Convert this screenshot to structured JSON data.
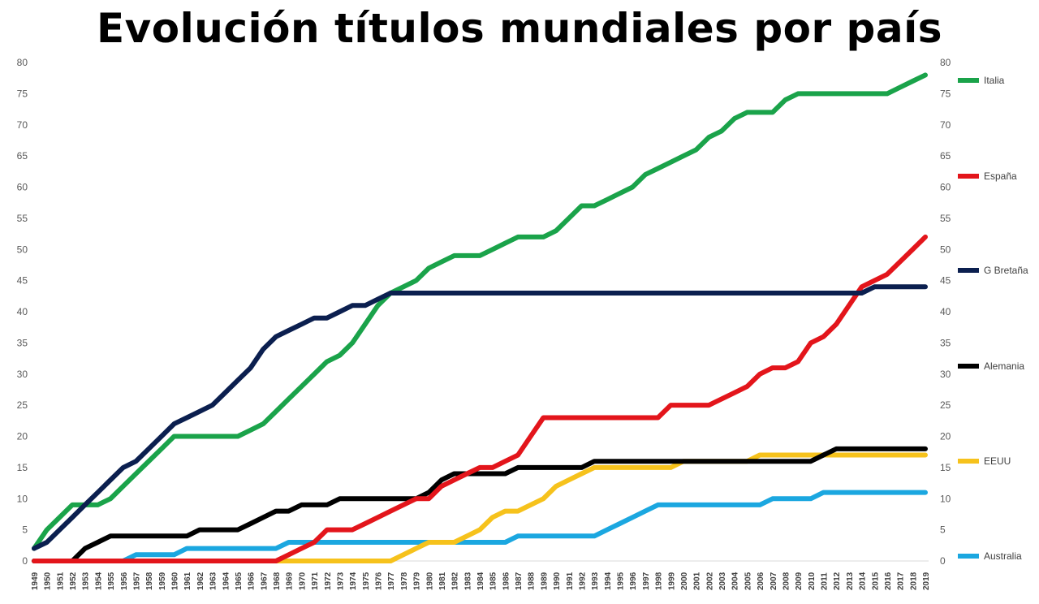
{
  "chart_data": {
    "type": "line",
    "title": "Evolución títulos mundiales por país",
    "xlabel": "",
    "ylabel": "",
    "ylim": [
      0,
      80
    ],
    "yticks": [
      0,
      5,
      10,
      15,
      20,
      25,
      30,
      35,
      40,
      45,
      50,
      55,
      60,
      65,
      70,
      75,
      80
    ],
    "x": [
      1949,
      1950,
      1951,
      1952,
      1953,
      1954,
      1955,
      1956,
      1957,
      1958,
      1959,
      1960,
      1961,
      1962,
      1963,
      1964,
      1965,
      1966,
      1967,
      1968,
      1969,
      1970,
      1971,
      1972,
      1973,
      1974,
      1975,
      1976,
      1977,
      1978,
      1979,
      1980,
      1981,
      1982,
      1983,
      1984,
      1985,
      1986,
      1987,
      1988,
      1989,
      1990,
      1991,
      1992,
      1993,
      1994,
      1995,
      1996,
      1997,
      1998,
      1999,
      2000,
      2001,
      2002,
      2003,
      2004,
      2005,
      2006,
      2007,
      2008,
      2009,
      2010,
      2011,
      2012,
      2013,
      2014,
      2015,
      2016,
      2017,
      2018,
      2019
    ],
    "series": [
      {
        "name": "Italia",
        "color": "#1aa34a",
        "values": [
          2,
          5,
          7,
          9,
          9,
          9,
          10,
          12,
          14,
          16,
          18,
          20,
          20,
          20,
          20,
          20,
          20,
          21,
          22,
          24,
          26,
          28,
          30,
          32,
          33,
          35,
          38,
          41,
          43,
          44,
          45,
          47,
          48,
          49,
          49,
          49,
          50,
          51,
          52,
          52,
          52,
          53,
          55,
          57,
          57,
          58,
          59,
          60,
          62,
          63,
          64,
          65,
          66,
          68,
          69,
          71,
          72,
          72,
          72,
          74,
          75,
          75,
          75,
          75,
          75,
          75,
          75,
          75,
          76,
          77,
          78
        ]
      },
      {
        "name": "España",
        "color": "#e3151b",
        "values": [
          0,
          0,
          0,
          0,
          0,
          0,
          0,
          0,
          0,
          0,
          0,
          0,
          0,
          0,
          0,
          0,
          0,
          0,
          0,
          0,
          1,
          2,
          3,
          5,
          5,
          5,
          6,
          7,
          8,
          9,
          10,
          10,
          12,
          13,
          14,
          15,
          15,
          16,
          17,
          20,
          23,
          23,
          23,
          23,
          23,
          23,
          23,
          23,
          23,
          23,
          25,
          25,
          25,
          25,
          26,
          27,
          28,
          30,
          31,
          31,
          32,
          35,
          36,
          38,
          41,
          44,
          45,
          46,
          48,
          50,
          52
        ]
      },
      {
        "name": "G Bretaña",
        "color": "#0b1f4f",
        "values": [
          2,
          3,
          5,
          7,
          9,
          11,
          13,
          15,
          16,
          18,
          20,
          22,
          23,
          24,
          25,
          27,
          29,
          31,
          34,
          36,
          37,
          38,
          39,
          39,
          40,
          41,
          41,
          42,
          43,
          43,
          43,
          43,
          43,
          43,
          43,
          43,
          43,
          43,
          43,
          43,
          43,
          43,
          43,
          43,
          43,
          43,
          43,
          43,
          43,
          43,
          43,
          43,
          43,
          43,
          43,
          43,
          43,
          43,
          43,
          43,
          43,
          43,
          43,
          43,
          43,
          43,
          44,
          44,
          44,
          44,
          44
        ]
      },
      {
        "name": "Alemania",
        "color": "#000000",
        "values": [
          0,
          0,
          0,
          0,
          2,
          3,
          4,
          4,
          4,
          4,
          4,
          4,
          4,
          5,
          5,
          5,
          5,
          6,
          7,
          8,
          8,
          9,
          9,
          9,
          10,
          10,
          10,
          10,
          10,
          10,
          10,
          11,
          13,
          14,
          14,
          14,
          14,
          14,
          15,
          15,
          15,
          15,
          15,
          15,
          16,
          16,
          16,
          16,
          16,
          16,
          16,
          16,
          16,
          16,
          16,
          16,
          16,
          16,
          16,
          16,
          16,
          16,
          17,
          18,
          18,
          18,
          18,
          18,
          18,
          18,
          18
        ]
      },
      {
        "name": "EEUU",
        "color": "#f6c21c",
        "values": [
          0,
          0,
          0,
          0,
          0,
          0,
          0,
          0,
          0,
          0,
          0,
          0,
          0,
          0,
          0,
          0,
          0,
          0,
          0,
          0,
          0,
          0,
          0,
          0,
          0,
          0,
          0,
          0,
          0,
          1,
          2,
          3,
          3,
          3,
          4,
          5,
          7,
          8,
          8,
          9,
          10,
          12,
          13,
          14,
          15,
          15,
          15,
          15,
          15,
          15,
          15,
          16,
          16,
          16,
          16,
          16,
          16,
          17,
          17,
          17,
          17,
          17,
          17,
          17,
          17,
          17,
          17,
          17,
          17,
          17,
          17
        ]
      },
      {
        "name": "Australia",
        "color": "#1ba7e0",
        "values": [
          0,
          0,
          0,
          0,
          0,
          0,
          0,
          0,
          1,
          1,
          1,
          1,
          2,
          2,
          2,
          2,
          2,
          2,
          2,
          2,
          3,
          3,
          3,
          3,
          3,
          3,
          3,
          3,
          3,
          3,
          3,
          3,
          3,
          3,
          3,
          3,
          3,
          3,
          4,
          4,
          4,
          4,
          4,
          4,
          4,
          5,
          6,
          7,
          8,
          9,
          9,
          9,
          9,
          9,
          9,
          9,
          9,
          9,
          10,
          10,
          10,
          10,
          11,
          11,
          11,
          11,
          11,
          11,
          11,
          11,
          11
        ]
      }
    ],
    "legend": "right"
  }
}
